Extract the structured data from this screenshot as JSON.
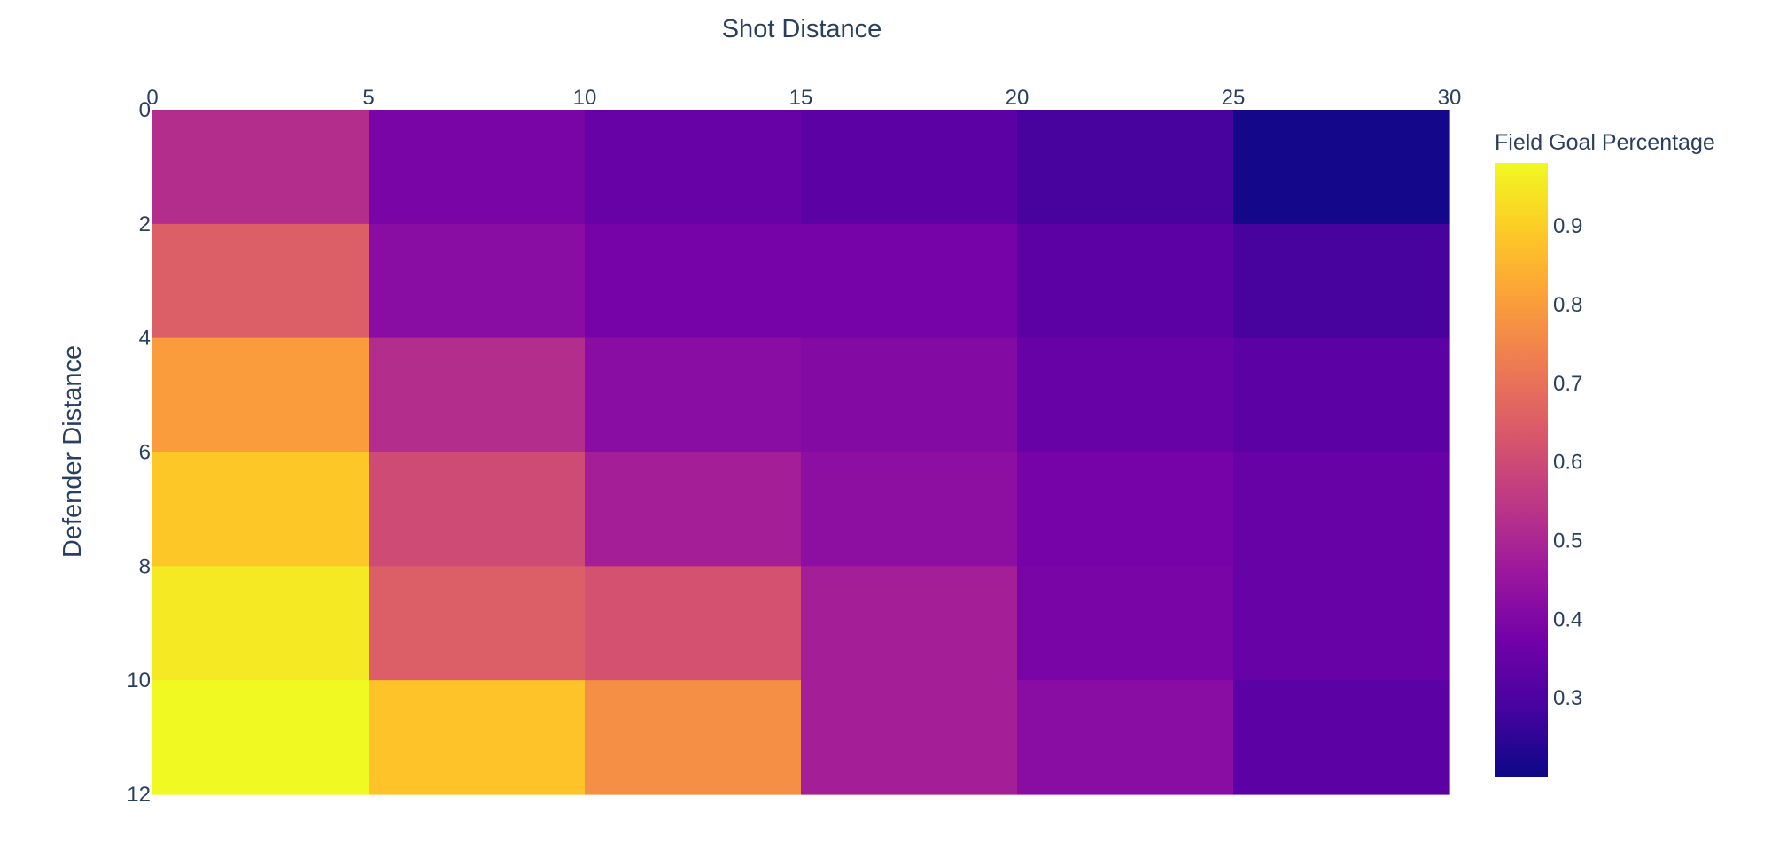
{
  "chart_data": {
    "type": "heatmap",
    "title": "",
    "xlabel": "Shot Distance",
    "ylabel": "Defender Distance",
    "x_edges": [
      0,
      5,
      10,
      15,
      20,
      25,
      30
    ],
    "y_edges": [
      0,
      2,
      4,
      6,
      8,
      10,
      12
    ],
    "x_ticks": [
      0,
      5,
      10,
      15,
      20,
      25,
      30
    ],
    "y_ticks": [
      0,
      2,
      4,
      6,
      8,
      10,
      12
    ],
    "xlim": [
      0,
      30
    ],
    "ylim": [
      0,
      12
    ],
    "x_axis_side": "top",
    "y_axis_reversed": true,
    "values": [
      [
        0.52,
        0.39,
        0.35,
        0.33,
        0.29,
        0.21
      ],
      [
        0.65,
        0.42,
        0.38,
        0.38,
        0.33,
        0.29
      ],
      [
        0.8,
        0.52,
        0.42,
        0.41,
        0.35,
        0.33
      ],
      [
        0.89,
        0.6,
        0.48,
        0.43,
        0.38,
        0.35
      ],
      [
        0.95,
        0.65,
        0.62,
        0.48,
        0.39,
        0.35
      ],
      [
        0.98,
        0.88,
        0.77,
        0.48,
        0.42,
        0.33
      ]
    ],
    "colorscale": "Plasma",
    "zmin": 0.2,
    "zmax": 0.98,
    "colorbar": {
      "title": "Field Goal Percentage",
      "ticks": [
        0.3,
        0.4,
        0.5,
        0.6,
        0.7,
        0.8,
        0.9
      ]
    },
    "grid": false,
    "legend": "none"
  },
  "colors": {
    "text": "#2a3f5f",
    "background": "#ffffff",
    "plasma": [
      "#0d0887",
      "#46039f",
      "#7201a8",
      "#9c179e",
      "#bd3786",
      "#d8576b",
      "#ed7953",
      "#fb9f3a",
      "#fdca26",
      "#f0f921"
    ]
  }
}
